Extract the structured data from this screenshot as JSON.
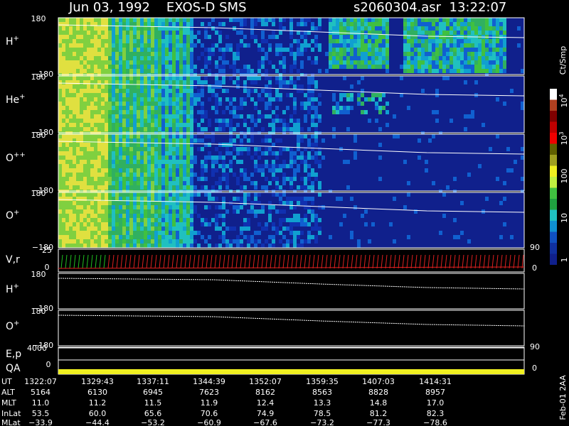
{
  "header": {
    "title": "Jun 03, 1992    EXOS-D SMS",
    "file": "s2060304.asr  13:22:07"
  },
  "panels": [
    {
      "label": "H",
      "charge": "+",
      "top": "180",
      "bottom": "−180"
    },
    {
      "label": "He",
      "charge": "+",
      "top": "180",
      "bottom": "−180"
    },
    {
      "label": "O",
      "charge": "++",
      "top": "180",
      "bottom": "−180"
    },
    {
      "label": "O",
      "charge": "+",
      "top": "180",
      "bottom": "−180"
    }
  ],
  "vr": {
    "label": "V,r",
    "top": "25",
    "bottom": "0",
    "right_top": "90",
    "right_bottom": "0"
  },
  "line_panels": [
    {
      "label": "H",
      "charge": "+",
      "top": "180",
      "bottom": "−180"
    },
    {
      "label": "O",
      "charge": "+",
      "top": "180",
      "bottom": "−180"
    }
  ],
  "ep": {
    "label": "E,p",
    "left": "4000",
    "right": "90"
  },
  "qa": {
    "label": "QA",
    "left": "0",
    "right": "0"
  },
  "colorbar": {
    "unit": "Ct/Smp",
    "labels": [
      {
        "base": "10",
        "exp": "4"
      },
      {
        "base": "10",
        "exp": "3"
      },
      {
        "base": "100"
      },
      {
        "base": "10"
      },
      {
        "base": "1"
      }
    ]
  },
  "footer": "Feb-01 2AA",
  "ephemeris": {
    "labels": [
      "UT",
      "ALT",
      "MLT",
      "InLat",
      "MLat"
    ],
    "rows": [
      [
        "1322:07",
        "1329:43",
        "1337:11",
        "1344:39",
        "1352:07",
        "1359:35",
        "1407:03",
        "1414:31"
      ],
      [
        "5164",
        "6130",
        "6945",
        "7623",
        "8162",
        "8563",
        "8828",
        "8957"
      ],
      [
        "11.0",
        "11.2",
        "11.5",
        "11.9",
        "12.4",
        "13.3",
        "14.8",
        "17.0"
      ],
      [
        "53.5",
        "60.0",
        "65.6",
        "70.6",
        "74.9",
        "78.5",
        "81.2",
        "82.3"
      ],
      [
        "−33.9",
        "−44.4",
        "−53.2",
        "−60.9",
        "−67.6",
        "−73.2",
        "−77.3",
        "−78.6"
      ]
    ]
  }
}
